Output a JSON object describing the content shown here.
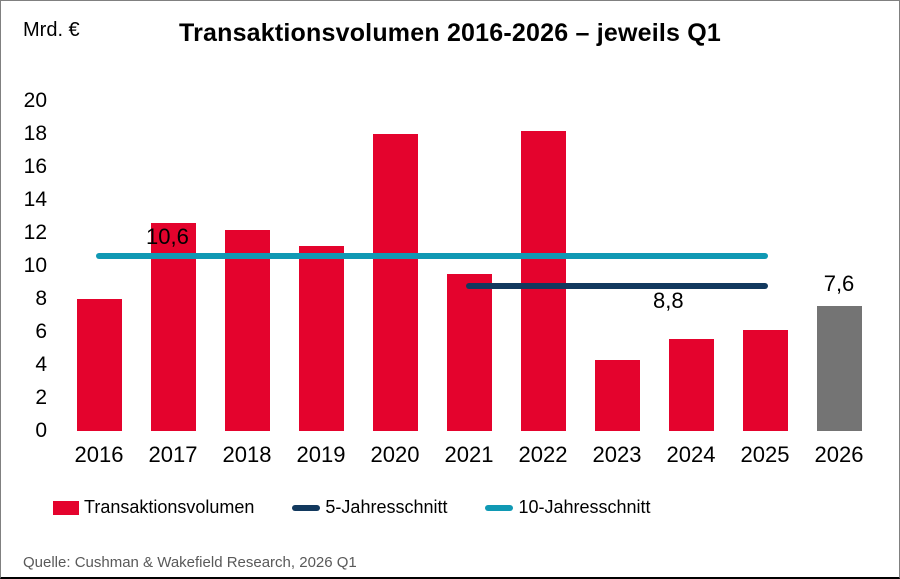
{
  "header": {
    "unit_label": "Mrd. €",
    "title": "Transaktionsvolumen 2016-2026 – jeweils Q1"
  },
  "colors": {
    "bar_red": "#E4032D",
    "bar_gray_forecast": "#747474",
    "line_5yr_navy": "#12395E",
    "line_10yr_teal": "#1099B4",
    "source_text_gray": "#595959"
  },
  "chart_data": {
    "type": "bar",
    "title": "Transaktionsvolumen 2016-2026 – jeweils Q1",
    "ylabel": "Mrd. €",
    "ylim": [
      0,
      20
    ],
    "ytick_step": 2,
    "yticks": [
      20,
      18,
      16,
      14,
      12,
      10,
      8,
      6,
      4,
      2,
      0
    ],
    "grid": false,
    "categories": [
      "2016",
      "2017",
      "2018",
      "2019",
      "2020",
      "2021",
      "2022",
      "2023",
      "2024",
      "2025",
      "2026"
    ],
    "series": [
      {
        "name": "Transaktionsvolumen",
        "values": [
          8.0,
          12.6,
          12.2,
          11.2,
          18.0,
          9.5,
          18.2,
          4.3,
          5.6,
          6.1,
          7.6
        ]
      }
    ],
    "bar_colors": [
      "#E4032D",
      "#E4032D",
      "#E4032D",
      "#E4032D",
      "#E4032D",
      "#E4032D",
      "#E4032D",
      "#E4032D",
      "#E4032D",
      "#E4032D",
      "#747474"
    ],
    "forecast_category": "2026",
    "reference_lines": [
      {
        "name": "10-Jahresschnitt",
        "value": 10.6,
        "color": "#1099B4",
        "span_category_indices": [
          0,
          9
        ]
      },
      {
        "name": "5-Jahresschnitt",
        "value": 8.8,
        "color": "#12395E",
        "span_category_indices": [
          5,
          9
        ]
      }
    ],
    "annotations": [
      {
        "id": "ten-year-avg-label",
        "text": "10,6"
      },
      {
        "id": "five-year-avg-label",
        "text": "8,8"
      },
      {
        "id": "forecast-bar-label",
        "text": "7,6"
      }
    ],
    "legend_position": "bottom"
  },
  "legend": {
    "items": [
      {
        "label": "Transaktionsvolumen",
        "swatch": "rect",
        "color": "#E4032D"
      },
      {
        "label": "5-Jahresschnitt",
        "swatch": "line",
        "color": "#12395E"
      },
      {
        "label": "10-Jahresschnitt",
        "swatch": "line",
        "color": "#1099B4"
      }
    ]
  },
  "footer": {
    "source": "Quelle: Cushman & Wakefield Research, 2026 Q1"
  }
}
